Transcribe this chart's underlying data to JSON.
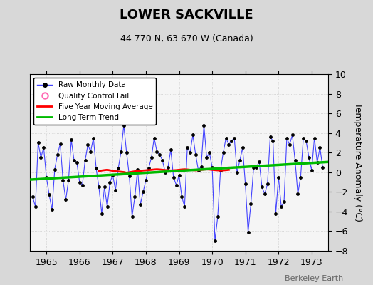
{
  "title": "LOWER SACKVILLE",
  "subtitle": "44.770 N, 63.670 W (Canada)",
  "ylabel_right": "Temperature Anomaly (°C)",
  "xlim": [
    1964.5,
    1973.5
  ],
  "ylim": [
    -8,
    10
  ],
  "yticks": [
    -8,
    -6,
    -4,
    -2,
    0,
    2,
    4,
    6,
    8,
    10
  ],
  "xticks": [
    1965,
    1966,
    1967,
    1968,
    1969,
    1970,
    1971,
    1972,
    1973
  ],
  "watermark": "Berkeley Earth",
  "background_color": "#d8d8d8",
  "plot_background_color": "#f5f5f5",
  "raw_data_x": [
    1964.583,
    1964.667,
    1964.75,
    1964.833,
    1964.917,
    1965.0,
    1965.083,
    1965.167,
    1965.25,
    1965.333,
    1965.417,
    1965.5,
    1965.583,
    1965.667,
    1965.75,
    1965.833,
    1965.917,
    1966.0,
    1966.083,
    1966.167,
    1966.25,
    1966.333,
    1966.417,
    1966.5,
    1966.583,
    1966.667,
    1966.75,
    1966.833,
    1966.917,
    1967.0,
    1967.083,
    1967.167,
    1967.25,
    1967.333,
    1967.417,
    1967.5,
    1967.583,
    1967.667,
    1967.75,
    1967.833,
    1967.917,
    1968.0,
    1968.083,
    1968.167,
    1968.25,
    1968.333,
    1968.417,
    1968.5,
    1968.583,
    1968.667,
    1968.75,
    1968.833,
    1968.917,
    1969.0,
    1969.083,
    1969.167,
    1969.25,
    1969.333,
    1969.417,
    1969.5,
    1969.583,
    1969.667,
    1969.75,
    1969.833,
    1969.917,
    1970.0,
    1970.083,
    1970.167,
    1970.25,
    1970.333,
    1970.417,
    1970.5,
    1970.583,
    1970.667,
    1970.75,
    1970.833,
    1970.917,
    1971.0,
    1971.083,
    1971.167,
    1971.25,
    1971.333,
    1971.417,
    1971.5,
    1971.583,
    1971.667,
    1971.75,
    1971.833,
    1971.917,
    1972.0,
    1972.083,
    1972.167,
    1972.25,
    1972.333,
    1972.417,
    1972.5,
    1972.583,
    1972.667,
    1972.75,
    1972.833,
    1972.917,
    1973.0,
    1973.083,
    1973.167,
    1973.25,
    1973.333
  ],
  "raw_data_y": [
    -2.5,
    -3.5,
    3.0,
    1.5,
    2.5,
    -0.5,
    -2.3,
    -3.8,
    0.3,
    1.8,
    2.9,
    -0.8,
    -2.8,
    -0.8,
    3.3,
    1.2,
    1.0,
    -1.0,
    -1.3,
    1.2,
    2.8,
    2.1,
    3.5,
    0.4,
    -1.5,
    -4.2,
    -1.5,
    -3.5,
    -1.0,
    -0.3,
    -1.8,
    0.4,
    2.1,
    4.8,
    2.0,
    -0.4,
    -4.5,
    -2.5,
    0.3,
    -3.3,
    -2.0,
    -0.8,
    0.4,
    1.5,
    3.5,
    2.1,
    1.8,
    1.2,
    0.0,
    0.5,
    2.3,
    -0.5,
    -1.3,
    -0.3,
    -2.5,
    -3.5,
    2.5,
    2.0,
    3.8,
    1.8,
    0.2,
    0.6,
    4.8,
    1.5,
    2.0,
    0.5,
    -7.0,
    -4.5,
    0.2,
    2.0,
    3.5,
    2.8,
    3.2,
    3.5,
    0.0,
    1.2,
    2.5,
    -1.2,
    -6.1,
    -3.2,
    0.5,
    0.5,
    1.1,
    -1.5,
    -2.2,
    -1.2,
    3.6,
    3.2,
    -4.2,
    -0.5,
    -3.5,
    -3.0,
    3.5,
    2.8,
    3.8,
    1.2,
    -2.2,
    -0.5,
    3.5,
    3.2,
    1.5,
    0.2,
    3.5,
    1.0,
    2.5,
    0.5
  ],
  "moving_avg_x": [
    1966.583,
    1966.667,
    1966.75,
    1966.833,
    1966.917,
    1967.0,
    1967.083,
    1967.167,
    1967.25,
    1967.333,
    1967.417,
    1967.5,
    1967.583,
    1967.667,
    1967.75,
    1967.833,
    1967.917,
    1968.0,
    1968.083,
    1968.167,
    1968.25,
    1968.333,
    1968.417,
    1968.5,
    1968.583,
    1968.667,
    1968.75,
    1968.833,
    1968.917,
    1969.0,
    1969.083,
    1969.167,
    1969.25,
    1969.333,
    1969.417,
    1969.5,
    1969.583,
    1969.667,
    1969.75,
    1969.833,
    1969.917,
    1970.0,
    1970.083,
    1970.167,
    1970.25,
    1970.333,
    1970.417,
    1970.5
  ],
  "moving_avg_y": [
    0.12,
    0.18,
    0.22,
    0.25,
    0.2,
    0.15,
    0.1,
    0.08,
    0.05,
    0.02,
    -0.05,
    0.0,
    0.05,
    0.1,
    0.12,
    0.15,
    0.18,
    0.2,
    0.22,
    0.25,
    0.28,
    0.3,
    0.28,
    0.25,
    0.22,
    0.2,
    0.18,
    0.2,
    0.22,
    0.25,
    0.28,
    0.3,
    0.28,
    0.25,
    0.22,
    0.2,
    0.22,
    0.25,
    0.28,
    0.3,
    0.28,
    0.25,
    0.22,
    0.2,
    0.18,
    0.2,
    0.22,
    0.25
  ],
  "trend_x": [
    1964.5,
    1973.5
  ],
  "trend_y": [
    -0.75,
    1.05
  ],
  "line_color": "#4444ff",
  "dot_color": "#000000",
  "moving_avg_color": "#ff0000",
  "trend_color": "#00bb00",
  "qc_fail_color": "#ff69b4",
  "grid_color": "#cccccc",
  "title_fontsize": 13,
  "subtitle_fontsize": 9,
  "tick_fontsize": 9,
  "legend_fontsize": 7.5
}
